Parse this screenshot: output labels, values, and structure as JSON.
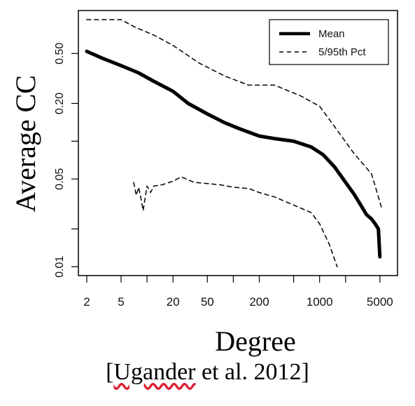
{
  "chart_data": {
    "type": "line",
    "xlabel": "Degree",
    "ylabel": "Average CC",
    "x_scale": "log",
    "y_scale": "log",
    "xlim": [
      1.6,
      8000
    ],
    "ylim": [
      0.0085,
      1.1
    ],
    "x_ticks": [
      2,
      5,
      10,
      20,
      50,
      100,
      200,
      500,
      1000,
      2000,
      5000
    ],
    "x_tick_labels": [
      "2",
      "5",
      "20",
      "50",
      "200",
      "1000",
      "5000"
    ],
    "y_ticks": [
      0.01,
      0.02,
      0.05,
      0.1,
      0.2,
      0.5
    ],
    "y_tick_labels": [
      "0.01",
      "0.05",
      "0.20",
      "0.50"
    ],
    "legend": {
      "placement": "top-right",
      "entries": [
        {
          "label": "Mean",
          "style": "solid-thick"
        },
        {
          "label": "5/95th Pct",
          "style": "dashed"
        }
      ]
    },
    "series": [
      {
        "name": "Mean",
        "style": "solid-thick",
        "x": [
          2,
          3,
          5,
          8,
          12,
          20,
          30,
          50,
          80,
          120,
          200,
          300,
          500,
          800,
          1100,
          1500,
          2000,
          2500,
          3000,
          3500,
          4000,
          4400,
          4800,
          5000
        ],
        "y": [
          0.52,
          0.46,
          0.4,
          0.35,
          0.3,
          0.25,
          0.2,
          0.165,
          0.14,
          0.125,
          0.11,
          0.105,
          0.1,
          0.09,
          0.078,
          0.062,
          0.047,
          0.038,
          0.031,
          0.026,
          0.024,
          0.022,
          0.02,
          0.012
        ]
      },
      {
        "name": "5/95th Pct",
        "style": "dashed",
        "segments": [
          {
            "x": [
              2,
              3,
              5,
              7,
              12,
              20,
              40,
              80,
              150,
              300,
              600,
              1000,
              1500,
              2500,
              4000,
              5200
            ],
            "y": [
              0.93,
              0.93,
              0.93,
              0.82,
              0.7,
              0.58,
              0.42,
              0.33,
              0.28,
              0.28,
              0.23,
              0.19,
              0.13,
              0.08,
              0.055,
              0.03
            ]
          },
          {
            "x": [
              7,
              7.5,
              8,
              8.5,
              9,
              10,
              11,
              12,
              15,
              20,
              25,
              35,
              50,
              70,
              100,
              150,
              200,
              300,
              500,
              800,
              1000,
              1300,
              1600
            ],
            "y": [
              0.047,
              0.037,
              0.043,
              0.035,
              0.028,
              0.044,
              0.039,
              0.044,
              0.045,
              0.048,
              0.052,
              0.047,
              0.046,
              0.045,
              0.043,
              0.042,
              0.039,
              0.036,
              0.031,
              0.027,
              0.022,
              0.015,
              0.01
            ]
          }
        ]
      }
    ]
  },
  "citation": {
    "open_bracket": "[",
    "author": "Ugander",
    "rest": " et al. 2012]"
  }
}
